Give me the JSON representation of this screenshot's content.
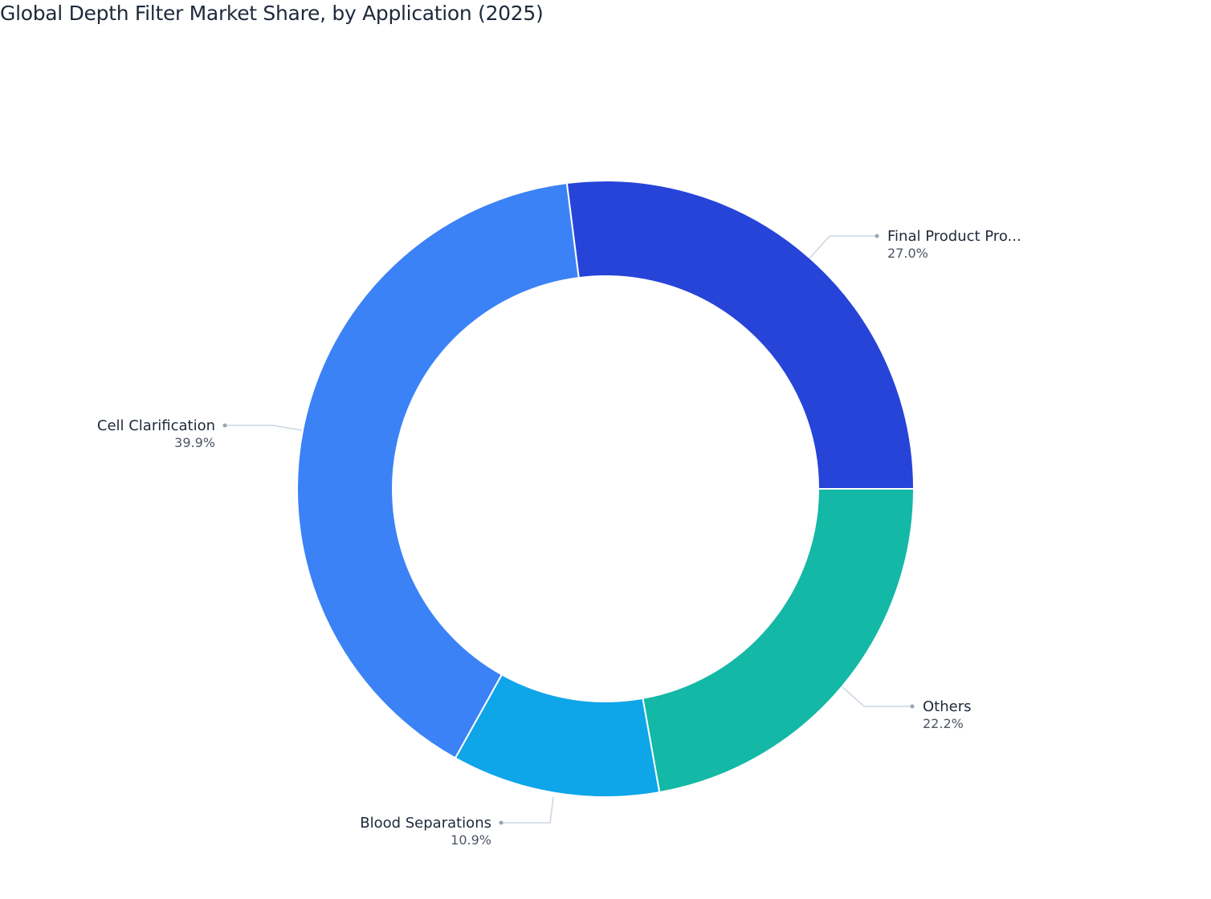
{
  "title": "Global Depth Filter Market Share, by Application (2025)",
  "chart_data": {
    "type": "pie",
    "subtype": "donut",
    "title": "Global Depth Filter Market Share, by Application (2025)",
    "categories": [
      "Final Product Pro...",
      "Others",
      "Blood Separations",
      "Cell Clarification"
    ],
    "values": [
      27.0,
      22.2,
      10.9,
      39.9
    ],
    "unit": "%",
    "colors": [
      "#2744d9",
      "#14b8a6",
      "#0ea5e9",
      "#3b82f6"
    ],
    "legend": "none (outside labels with leader lines)"
  },
  "slices": [
    {
      "key": "others",
      "label": "Others",
      "value": 22.2,
      "pct_text": "22.2%",
      "color": "#14b8a6"
    },
    {
      "key": "blood",
      "label": "Blood Separations",
      "value": 10.9,
      "pct_text": "10.9%",
      "color": "#0ea5e9"
    },
    {
      "key": "cell",
      "label": "Cell Clarification",
      "value": 39.9,
      "pct_text": "39.9%",
      "color": "#3b82f6"
    },
    {
      "key": "final",
      "label": "Final Product Pro...",
      "value": 27.0,
      "pct_text": "27.0%",
      "color": "#2744d9"
    }
  ],
  "labels": {
    "final": {
      "name": "Final Product Pro...",
      "pct": "27.0%"
    },
    "cell": {
      "name": "Cell Clarification",
      "pct": "39.9%"
    },
    "blood": {
      "name": "Blood Separations",
      "pct": "10.9%"
    },
    "others": {
      "name": "Others",
      "pct": "22.2%"
    }
  }
}
